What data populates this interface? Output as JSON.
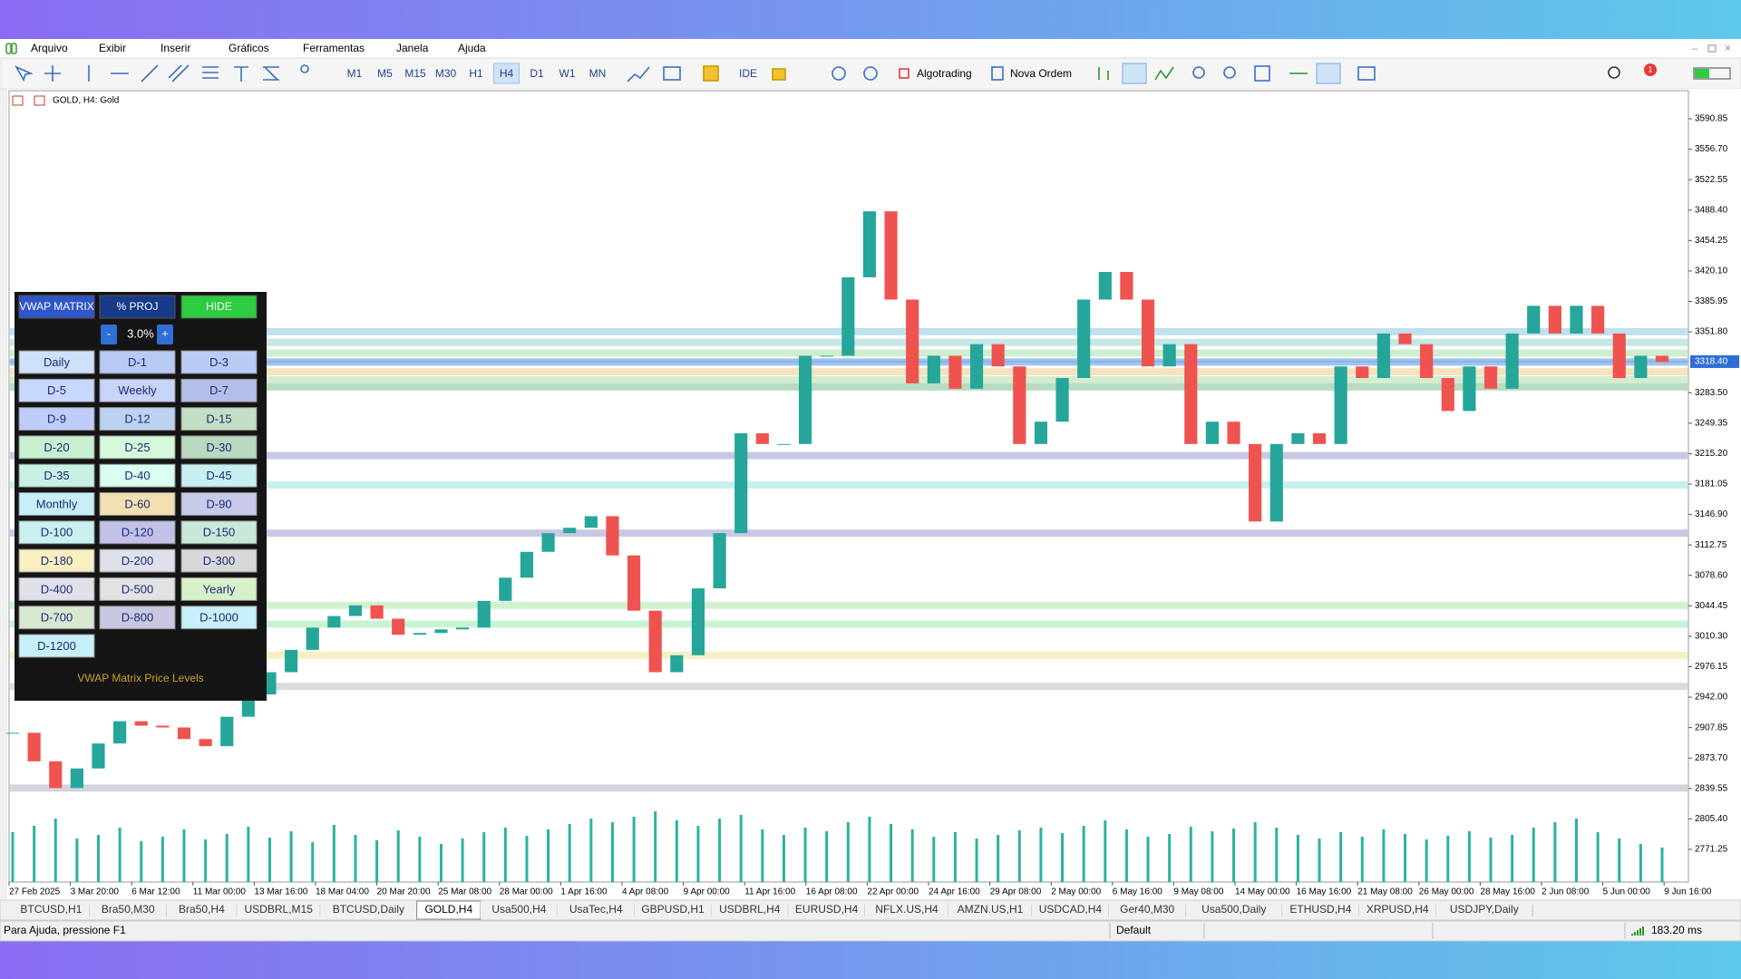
{
  "menu": [
    "Arquivo",
    "Exibir",
    "Inserir",
    "Gráficos",
    "Ferramentas",
    "Janela",
    "Ajuda"
  ],
  "toolbar": {
    "timeframes": [
      "M1",
      "M5",
      "M15",
      "M30",
      "H1",
      "H4",
      "D1",
      "W1",
      "MN"
    ],
    "active_timeframe": 5,
    "ide": "IDE",
    "algotrading": "Algotrading",
    "new_order": "Nova Ordem",
    "notifications": 1
  },
  "chart": {
    "symbol_label": "GOLD, H4:  Gold",
    "ylim": [
      2734.6,
      3622.4
    ],
    "yticks": [
      3590.85,
      {
        "value": 3556.7,
        "label": "3556.70"
      },
      3522.55,
      {
        "value": 3488.4,
        "label": "3488.40"
      },
      3454.25,
      {
        "value": 3420.1,
        "label": "3420.10"
      },
      3385.95,
      {
        "value": 3351.8,
        "label": "3351.80"
      },
      {
        "value": 3283.5,
        "label": "3283.50"
      },
      3249.35,
      {
        "value": 3215.2,
        "label": "3215.20"
      },
      3181.05,
      {
        "value": 3146.9,
        "label": "3146.90"
      },
      3112.75,
      {
        "value": 3078.6,
        "label": "3078.60"
      },
      3044.45,
      {
        "value": 3010.3,
        "label": "3010.30"
      },
      2976.15,
      {
        "value": 2942,
        "label": "2942.00"
      },
      2907.85,
      {
        "value": 2873.7,
        "label": "2873.70"
      },
      2839.55,
      {
        "value": 2805.4,
        "label": "2805.40"
      },
      2771.25
    ],
    "current_price": {
      "value": 3318.4,
      "label": "3318.40"
    },
    "dates": [
      "27 Feb 2025",
      "3 Mar 20:00",
      "6 Mar 12:00",
      "11 Mar 00:00",
      "13 Mar 16:00",
      "18 Mar 04:00",
      "20 Mar 20:00",
      "25 Mar 08:00",
      "28 Mar 00:00",
      "1 Apr 16:00",
      "4 Apr 08:00",
      "9 Apr 00:00",
      "11 Apr 16:00",
      "16 Apr 08:00",
      "22 Apr 00:00",
      "24 Apr 16:00",
      "29 Apr 08:00",
      "2 May 00:00",
      "6 May 16:00",
      "9 May 08:00",
      "14 May 00:00",
      "16 May 16:00",
      "21 May 08:00",
      "26 May 00:00",
      "28 May 16:00",
      "2 Jun 08:00",
      "5 Jun 00:00",
      "9 Jun 16:00"
    ],
    "closes": [
      2902,
      2870,
      2840,
      2862,
      2890,
      2915,
      2910,
      2908,
      2895,
      2887,
      2920,
      2945,
      2970,
      2995,
      3020,
      3033,
      3045,
      3030,
      3012,
      3014,
      3018,
      3020,
      3050,
      3076,
      3105,
      3126,
      3132,
      3145,
      3101,
      3039,
      2970,
      2989,
      3064,
      3126,
      3238,
      3226,
      3226,
      3325,
      3325,
      3413,
      3487,
      3388,
      3294,
      3325,
      3288,
      3338,
      3313,
      3226,
      3251,
      3300,
      3388,
      3419,
      3388,
      3313,
      3338,
      3226,
      3251,
      3226,
      3139,
      3226,
      3238,
      3226,
      3313,
      3300,
      3350,
      3338,
      3300,
      3263,
      3313,
      3288,
      3350,
      3381,
      3350,
      3381,
      3350,
      3300,
      3325,
      3318
    ],
    "up_color": "#26a69a",
    "down_color": "#ef5350",
    "volumes": [
      55,
      62,
      70,
      48,
      52,
      60,
      45,
      50,
      58,
      47,
      53,
      61,
      49,
      56,
      44,
      63,
      52,
      46,
      57,
      50,
      42,
      48,
      55,
      60,
      51,
      58,
      64,
      70,
      66,
      72,
      78,
      68,
      62,
      70,
      74,
      58,
      52,
      60,
      56,
      66,
      72,
      64,
      58,
      50,
      55,
      48,
      52,
      57,
      60,
      54,
      62,
      68,
      58,
      50,
      53,
      61,
      56,
      59,
      66,
      60,
      52,
      48,
      55,
      50,
      58,
      53,
      47,
      51,
      56,
      49,
      52,
      60,
      66,
      70,
      55,
      48,
      42,
      38
    ],
    "volume_color": "#2bb3a0",
    "levels": [
      {
        "price": 3352,
        "color": "#bfe0ee"
      },
      {
        "price": 3340,
        "color": "#c6e8e4"
      },
      {
        "price": 3328,
        "color": "#cfeecf"
      },
      {
        "price": 3318,
        "color": "#9ec3ef"
      },
      {
        "price": 3307,
        "color": "#f6e2bf"
      },
      {
        "price": 3298,
        "color": "#d4ecd0"
      },
      {
        "price": 3290,
        "color": "#b9dcc0"
      },
      {
        "price": 3213,
        "color": "#c9c9e6"
      },
      {
        "price": 3180,
        "color": "#c8f0f0"
      },
      {
        "price": 3126,
        "color": "#c9c9e6"
      },
      {
        "price": 3045,
        "color": "#d0f2d0"
      },
      {
        "price": 3024,
        "color": "#c8f4d4"
      },
      {
        "price": 2989,
        "color": "#f6f0c4"
      },
      {
        "price": 2954,
        "color": "#dcdcdc"
      },
      {
        "price": 2840,
        "color": "#d4d4dc"
      }
    ]
  },
  "panel": {
    "header": [
      {
        "label": "VWAP MATRIX",
        "color": "#2f55c9"
      },
      {
        "label": "% PROJ",
        "color": "#173a8a"
      },
      {
        "label": "HIDE",
        "color": "#2ecc40"
      }
    ],
    "step": {
      "minus": "-",
      "value": "3.0%",
      "plus": "+"
    },
    "buttons": [
      {
        "label": "Daily",
        "color": "#cfe0fb"
      },
      {
        "label": "D-1",
        "color": "#b8c9f2"
      },
      {
        "label": "D-3",
        "color": "#bccbf6"
      },
      {
        "label": "D-5",
        "color": "#c8d8ff"
      },
      {
        "label": "Weekly",
        "color": "#c8d4f8"
      },
      {
        "label": "D-7",
        "color": "#b4bfe9"
      },
      {
        "label": "D-9",
        "color": "#c0ccf8"
      },
      {
        "label": "D-12",
        "color": "#bcd2f0"
      },
      {
        "label": "D-15",
        "color": "#c4dec6"
      },
      {
        "label": "D-20",
        "color": "#c8f0d0"
      },
      {
        "label": "D-25",
        "color": "#d4fadb"
      },
      {
        "label": "D-30",
        "color": "#b8d8c0"
      },
      {
        "label": "D-35",
        "color": "#c8f0e4"
      },
      {
        "label": "D-40",
        "color": "#d8fff0"
      },
      {
        "label": "D-45",
        "color": "#c8eff0"
      },
      {
        "label": "Monthly",
        "color": "#c8eff8"
      },
      {
        "label": "D-60",
        "color": "#f2e0b0"
      },
      {
        "label": "D-90",
        "color": "#c8c8e8"
      },
      {
        "label": "D-100",
        "color": "#c8f0f0"
      },
      {
        "label": "D-120",
        "color": "#c2c2e8"
      },
      {
        "label": "D-150",
        "color": "#c8e8d8"
      },
      {
        "label": "D-180",
        "color": "#f8f0c0"
      },
      {
        "label": "D-200",
        "color": "#e0e0ea"
      },
      {
        "label": "D-300",
        "color": "#d8d8d8"
      },
      {
        "label": "D-400",
        "color": "#e0e0ea"
      },
      {
        "label": "D-500",
        "color": "#e2e2e2"
      },
      {
        "label": "Yearly",
        "color": "#d8f0c8"
      },
      {
        "label": "D-700",
        "color": "#d8e8d0"
      },
      {
        "label": "D-800",
        "color": "#c8c8e0"
      },
      {
        "label": "D-1000",
        "color": "#c8f0f8"
      },
      {
        "label": "D-1200",
        "color": "#c8f0f8"
      }
    ],
    "footer": "VWAP Matrix Price Levels"
  },
  "tabs": [
    "BTCUSD,H1",
    "Bra50,M30",
    "Bra50,H4",
    "USDBRL,M15",
    "BTCUSD,Daily",
    "GOLD,H4",
    "Usa500,H4",
    "UsaTec,H4",
    "GBPUSD,H1",
    "USDBRL,H4",
    "EURUSD,H4",
    "NFLX.US,H4",
    "AMZN.US,H1",
    "USDCAD,H4",
    "Ger40,M30",
    "Usa500,Daily",
    "ETHUSD,H4",
    "XRPUSD,H4",
    "USDJPY,Daily"
  ],
  "active_tab": 5,
  "status": {
    "help": "Para Ajuda, pressione F1",
    "profile": "Default",
    "ping": "183.20 ms"
  }
}
